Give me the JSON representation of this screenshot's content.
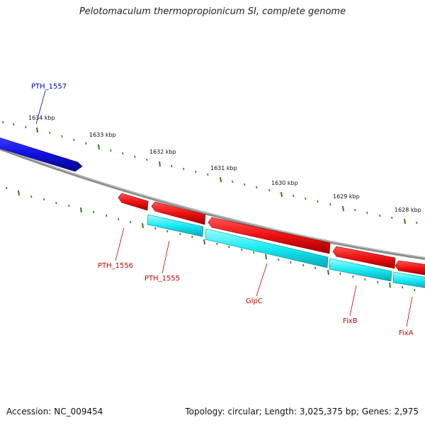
{
  "title": "Pelotomaculum thermopropionicum SI, complete genome",
  "footer": {
    "accession": "Accession: NC_009454",
    "summary": "Topology: circular; Length: 3,025,375 bp; Genes: 2,975"
  },
  "scale": {
    "labels": [
      "1634 kbp",
      "1633 kbp",
      "1632 kbp",
      "1631 kbp",
      "1630 kbp",
      "1629 kbp",
      "1628 kbp"
    ]
  },
  "genes": [
    {
      "name": "PTH_1557",
      "color": "#0000cc"
    },
    {
      "name": "PTH_1556",
      "color": "#cc0000"
    },
    {
      "name": "PTH_1555",
      "color": "#cc0000"
    },
    {
      "name": "GlpC",
      "color": "#cc0000"
    },
    {
      "name": "FixB",
      "color": "#cc0000"
    },
    {
      "name": "FixA",
      "color": "#cc0000"
    }
  ],
  "colors": {
    "forward": "#1a1aee",
    "reverse": "#ee1111",
    "cds": "#00e5ee",
    "backbone": "#808080",
    "ticks": "#2e7d1a"
  }
}
